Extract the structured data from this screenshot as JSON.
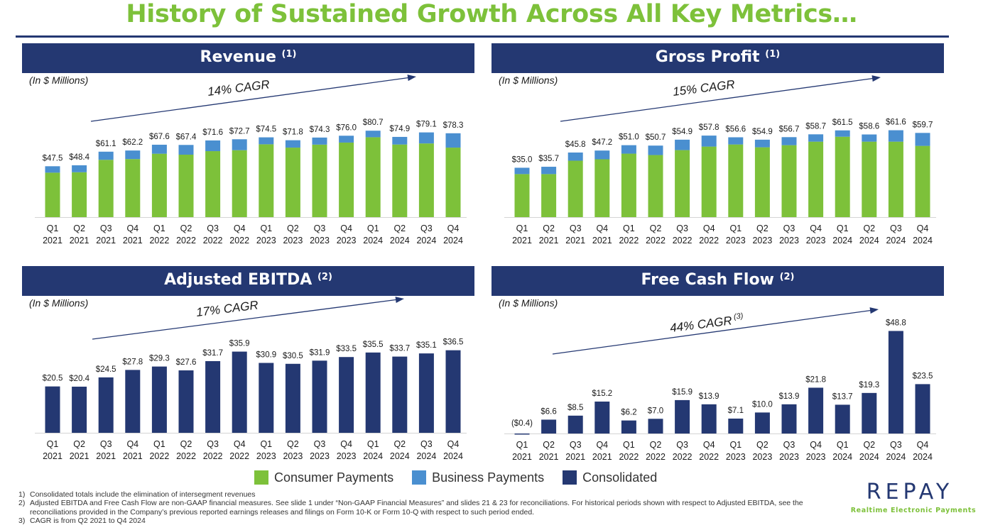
{
  "title": "History of Sustained Growth Across All Key Metrics…",
  "colors": {
    "consumer": "#7dc13a",
    "business": "#4a8fd0",
    "consolidated": "#243872",
    "accent": "#7dc13a"
  },
  "legend": [
    "Consumer Payments",
    "Business Payments",
    "Consolidated"
  ],
  "footnotes": [
    {
      "num": "1)",
      "text": "Consolidated totals include the elimination of intersegment revenues"
    },
    {
      "num": "2)",
      "text": "Adjusted EBITDA and Free Cash Flow are non-GAAP financial measures.  See slide 1 under “Non-GAAP Financial Measures” and slides 21 & 23 for reconciliations. For historical periods shown with respect to Adjusted EBITDA, see the reconciliations provided in the Company’s previous reported earnings releases and filings on Form 10-K or Form 10-Q with respect to such period ended."
    },
    {
      "num": "3)",
      "text": "CAGR is from Q2 2021 to Q4 2024"
    }
  ],
  "logo": {
    "word": "REPAY",
    "tagline": "Realtime Electronic Payments"
  },
  "chart_data": [
    {
      "type": "bar",
      "stacked": true,
      "title": "Revenue",
      "title_note": "(1)",
      "unit_label": "(In $ Millions)",
      "cagr": "14% CAGR",
      "cagr_note": "",
      "categories": [
        "Q1\n2021",
        "Q2\n2021",
        "Q3\n2021",
        "Q4\n2021",
        "Q1\n2022",
        "Q2\n2022",
        "Q3\n2022",
        "Q4\n2022",
        "Q1\n2023",
        "Q2\n2023",
        "Q3\n2023",
        "Q4\n2023",
        "Q1\n2024",
        "Q2\n2024",
        "Q3\n2024",
        "Q4\n2024"
      ],
      "totals": [
        47.5,
        48.4,
        61.1,
        62.2,
        67.6,
        67.4,
        71.6,
        72.7,
        74.5,
        71.8,
        74.3,
        76.0,
        80.7,
        74.9,
        79.1,
        78.3
      ],
      "labels": [
        "$47.5",
        "$48.4",
        "$61.1",
        "$62.2",
        "$67.6",
        "$67.4",
        "$71.6",
        "$72.7",
        "$74.5",
        "$71.8",
        "$74.3",
        "$76.0",
        "$80.7",
        "$74.9",
        "$79.1",
        "$78.3"
      ],
      "series": [
        {
          "name": "Consumer Payments",
          "color": "#7dc13a",
          "values": [
            41.5,
            41.9,
            53.5,
            54.2,
            59.2,
            58.3,
            61.6,
            62.5,
            68.0,
            64.9,
            67.7,
            69.6,
            74.6,
            67.8,
            68.8,
            64.9
          ]
        },
        {
          "name": "Business Payments",
          "color": "#4a8fd0",
          "values": [
            6.0,
            6.5,
            7.6,
            8.0,
            8.4,
            9.1,
            10.0,
            10.2,
            6.5,
            6.9,
            6.6,
            6.4,
            6.1,
            7.1,
            10.3,
            13.4
          ]
        }
      ],
      "ylim": [
        0,
        108
      ]
    },
    {
      "type": "bar",
      "stacked": true,
      "title": "Gross Profit",
      "title_note": "(1)",
      "unit_label": "(In $ Millions)",
      "cagr": "15% CAGR",
      "cagr_note": "",
      "categories": [
        "Q1\n2021",
        "Q2\n2021",
        "Q3\n2021",
        "Q4\n2021",
        "Q1\n2022",
        "Q2\n2022",
        "Q3\n2022",
        "Q4\n2022",
        "Q1\n2023",
        "Q2\n2023",
        "Q3\n2023",
        "Q4\n2023",
        "Q1\n2024",
        "Q2\n2024",
        "Q3\n2024",
        "Q4\n2024"
      ],
      "totals": [
        35.0,
        35.7,
        45.8,
        47.2,
        51.0,
        50.7,
        54.9,
        57.8,
        56.6,
        54.9,
        56.7,
        58.7,
        61.5,
        58.6,
        61.6,
        59.7
      ],
      "labels": [
        "$35.0",
        "$35.7",
        "$45.8",
        "$47.2",
        "$51.0",
        "$50.7",
        "$54.9",
        "$57.8",
        "$56.6",
        "$54.9",
        "$56.7",
        "$58.7",
        "$61.5",
        "$58.6",
        "$61.6",
        "$59.7"
      ],
      "series": [
        {
          "name": "Consumer Payments",
          "color": "#7dc13a",
          "values": [
            30.5,
            30.5,
            40.0,
            41.0,
            45.0,
            44.0,
            47.5,
            50.0,
            51.5,
            49.5,
            51.0,
            53.5,
            57.0,
            53.5,
            53.5,
            50.5
          ]
        },
        {
          "name": "Business Payments",
          "color": "#4a8fd0",
          "values": [
            4.5,
            5.2,
            5.8,
            6.2,
            6.0,
            6.7,
            7.4,
            7.8,
            5.1,
            5.4,
            5.7,
            5.2,
            4.5,
            5.1,
            8.1,
            9.2
          ]
        }
      ],
      "ylim": [
        0,
        82
      ]
    },
    {
      "type": "bar",
      "stacked": false,
      "title": "Adjusted EBITDA",
      "title_note": "(2)",
      "unit_label": "(In $ Millions)",
      "cagr": "17% CAGR",
      "cagr_note": "",
      "categories": [
        "Q1\n2021",
        "Q2\n2021",
        "Q3\n2021",
        "Q4\n2021",
        "Q1\n2022",
        "Q2\n2022",
        "Q3\n2022",
        "Q4\n2022",
        "Q1\n2023",
        "Q2\n2023",
        "Q3\n2023",
        "Q4\n2023",
        "Q1\n2024",
        "Q2\n2024",
        "Q3\n2024",
        "Q4\n2024"
      ],
      "totals": [
        20.5,
        20.4,
        24.5,
        27.8,
        29.3,
        27.6,
        31.7,
        35.9,
        30.9,
        30.5,
        31.9,
        33.5,
        35.5,
        33.7,
        35.1,
        36.5
      ],
      "labels": [
        "$20.5",
        "$20.4",
        "$24.5",
        "$27.8",
        "$29.3",
        "$27.6",
        "$31.7",
        "$35.9",
        "$30.9",
        "$30.5",
        "$31.9",
        "$33.5",
        "$35.5",
        "$33.7",
        "$35.1",
        "$36.5"
      ],
      "series": [
        {
          "name": "Consolidated",
          "color": "#243872",
          "values": [
            20.5,
            20.4,
            24.5,
            27.8,
            29.3,
            27.6,
            31.7,
            35.9,
            30.9,
            30.5,
            31.9,
            33.5,
            35.5,
            33.7,
            35.1,
            36.5
          ]
        }
      ],
      "ylim": [
        0,
        48
      ]
    },
    {
      "type": "bar",
      "stacked": false,
      "title": "Free Cash Flow",
      "title_note": "(2)",
      "unit_label": "(In $ Millions)",
      "cagr": "44% CAGR",
      "cagr_note": "(3)",
      "categories": [
        "Q1\n2021",
        "Q2\n2021",
        "Q3\n2021",
        "Q4\n2021",
        "Q1\n2022",
        "Q2\n2022",
        "Q3\n2022",
        "Q4\n2022",
        "Q1\n2023",
        "Q2\n2023",
        "Q3\n2023",
        "Q4\n2023",
        "Q1\n2024",
        "Q2\n2024",
        "Q3\n2024",
        "Q4\n2024"
      ],
      "totals": [
        -0.4,
        6.6,
        8.5,
        15.2,
        6.2,
        7.0,
        15.9,
        13.9,
        7.1,
        10.0,
        13.9,
        21.8,
        13.7,
        19.3,
        48.8,
        23.5
      ],
      "labels": [
        "($0.4)",
        "$6.6",
        "$8.5",
        "$15.2",
        "$6.2",
        "$7.0",
        "$15.9",
        "$13.9",
        "$7.1",
        "$10.0",
        "$13.9",
        "$21.8",
        "$13.7",
        "$19.3",
        "$48.8",
        "$23.5"
      ],
      "series": [
        {
          "name": "Consolidated",
          "color": "#243872",
          "values": [
            -0.4,
            6.6,
            8.5,
            15.2,
            6.2,
            7.0,
            15.9,
            13.9,
            7.1,
            10.0,
            13.9,
            21.8,
            13.7,
            19.3,
            48.8,
            23.5
          ]
        }
      ],
      "ylim": [
        0,
        52
      ]
    }
  ]
}
